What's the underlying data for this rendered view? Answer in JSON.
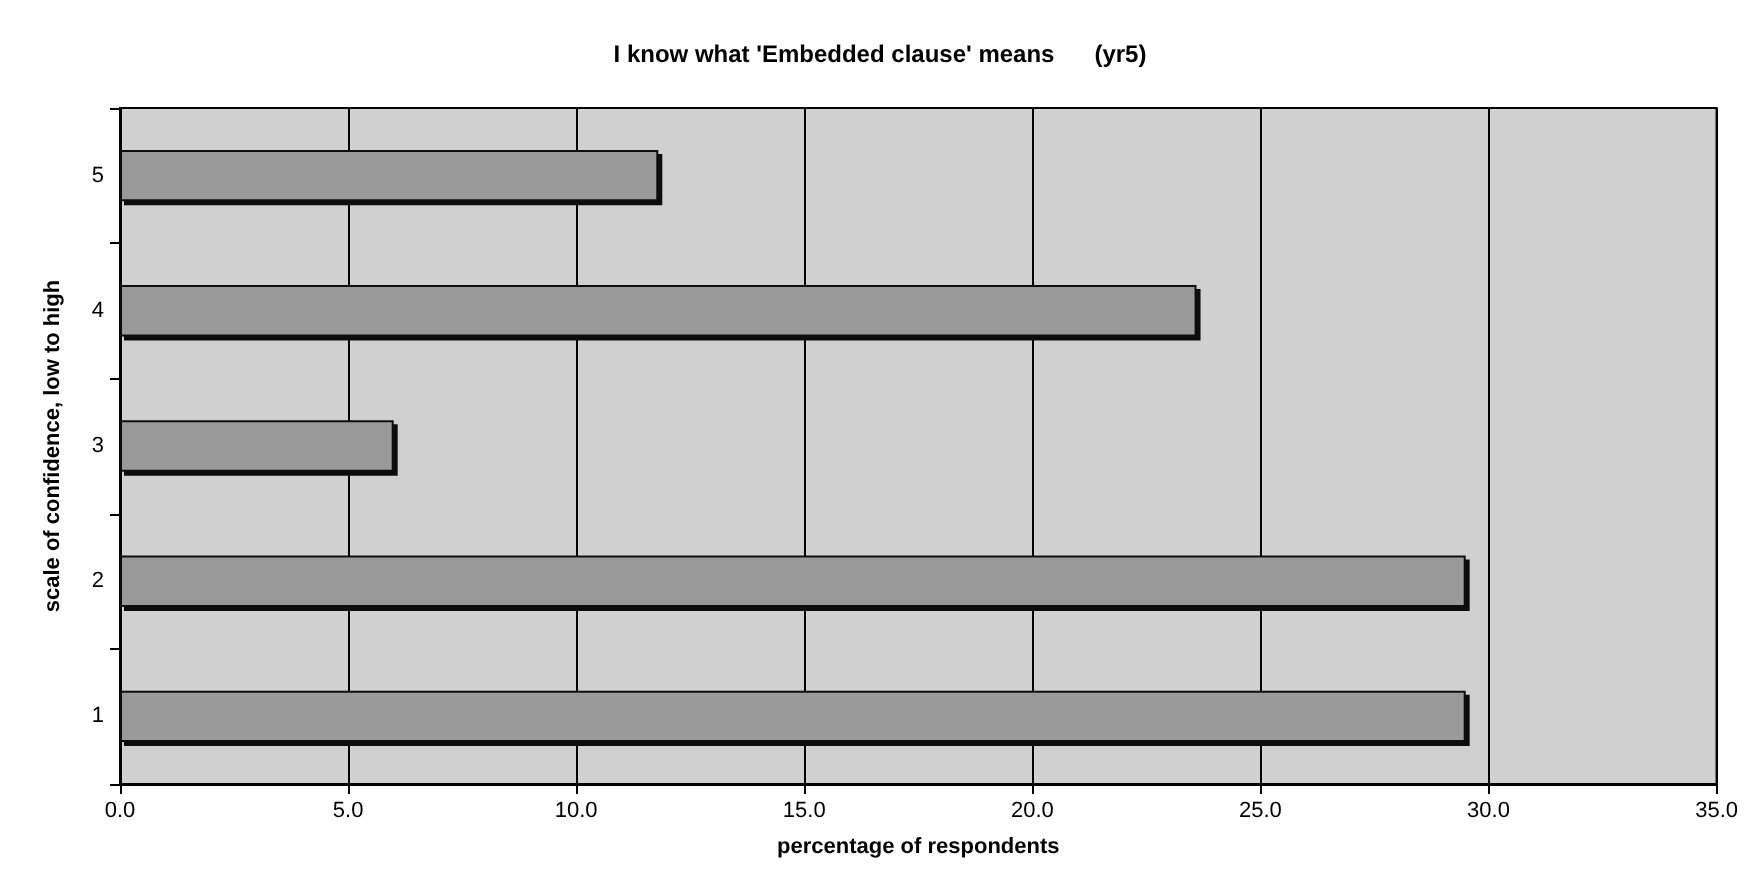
{
  "chart_data": {
    "type": "bar",
    "orientation": "horizontal",
    "title": "I know what 'Embedded clause' means      (yr5)",
    "xlabel": "percentage of respondents",
    "ylabel": "scale of confidence, low to high",
    "categories": [
      "5",
      "4",
      "3",
      "2",
      "1"
    ],
    "values": [
      11.8,
      23.6,
      6.0,
      29.5,
      29.5
    ],
    "color": "#9a9a9a",
    "xlim": [
      0,
      35
    ],
    "xticks": [
      {
        "value": 0,
        "label": "0.0"
      },
      {
        "value": 5,
        "label": "5.0"
      },
      {
        "value": 10,
        "label": "10.0"
      },
      {
        "value": 15,
        "label": "15.0"
      },
      {
        "value": 20,
        "label": "20.0"
      },
      {
        "value": 25,
        "label": "25.0"
      },
      {
        "value": 30,
        "label": "30.0"
      },
      {
        "value": 35,
        "label": "35.0"
      }
    ],
    "grid": "x"
  }
}
